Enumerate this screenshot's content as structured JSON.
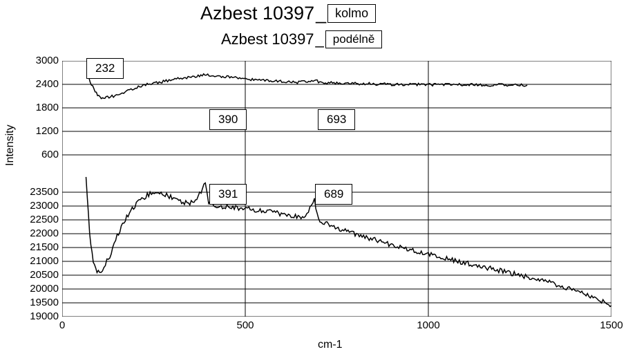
{
  "title1": {
    "text": "Azbest 10397",
    "box": "kolmo"
  },
  "title2": {
    "text": "Azbest 10397",
    "box": "podélně"
  },
  "ylabel": "Intensity",
  "xlabel": "cm-1",
  "chart": {
    "type": "line",
    "background_color": "#ffffff",
    "line_color": "#000000",
    "grid_color": "#000000",
    "border_color": "#000000",
    "line_width": 1.5,
    "title_fontsize": 27,
    "subtitle_fontsize": 22,
    "label_fontsize": 16,
    "tick_fontsize": 15,
    "xlim": [
      0,
      1500
    ],
    "xtick_step": 500,
    "xticks": [
      0,
      500,
      1000,
      1500
    ],
    "top_panel": {
      "ylim": [
        0,
        3000
      ],
      "ytick_step": 600,
      "yticks": [
        600,
        1200,
        1800,
        2400,
        3000
      ],
      "series": [
        {
          "x": 70,
          "y": 2600
        },
        {
          "x": 80,
          "y": 2400
        },
        {
          "x": 90,
          "y": 2200
        },
        {
          "x": 100,
          "y": 2100
        },
        {
          "x": 110,
          "y": 2050
        },
        {
          "x": 120,
          "y": 2060
        },
        {
          "x": 140,
          "y": 2100
        },
        {
          "x": 160,
          "y": 2150
        },
        {
          "x": 180,
          "y": 2250
        },
        {
          "x": 200,
          "y": 2300
        },
        {
          "x": 220,
          "y": 2380
        },
        {
          "x": 232,
          "y": 2400
        },
        {
          "x": 250,
          "y": 2420
        },
        {
          "x": 280,
          "y": 2480
        },
        {
          "x": 320,
          "y": 2550
        },
        {
          "x": 360,
          "y": 2600
        },
        {
          "x": 390,
          "y": 2640
        },
        {
          "x": 420,
          "y": 2620
        },
        {
          "x": 450,
          "y": 2590
        },
        {
          "x": 500,
          "y": 2540
        },
        {
          "x": 550,
          "y": 2500
        },
        {
          "x": 600,
          "y": 2470
        },
        {
          "x": 650,
          "y": 2450
        },
        {
          "x": 693,
          "y": 2520
        },
        {
          "x": 700,
          "y": 2450
        },
        {
          "x": 750,
          "y": 2430
        },
        {
          "x": 800,
          "y": 2420
        },
        {
          "x": 850,
          "y": 2410
        },
        {
          "x": 900,
          "y": 2400
        },
        {
          "x": 950,
          "y": 2400
        },
        {
          "x": 1000,
          "y": 2395
        },
        {
          "x": 1050,
          "y": 2390
        },
        {
          "x": 1100,
          "y": 2390
        },
        {
          "x": 1150,
          "y": 2385
        },
        {
          "x": 1200,
          "y": 2385
        },
        {
          "x": 1250,
          "y": 2380
        },
        {
          "x": 1270,
          "y": 2380
        }
      ]
    },
    "bottom_panel": {
      "ylim": [
        19000,
        24000
      ],
      "ytick_step": 500,
      "yticks": [
        19000,
        19500,
        20000,
        20500,
        21000,
        21500,
        22000,
        22500,
        23000,
        23500
      ],
      "series": [
        {
          "x": 65,
          "y": 24100
        },
        {
          "x": 75,
          "y": 22000
        },
        {
          "x": 85,
          "y": 21000
        },
        {
          "x": 95,
          "y": 20600
        },
        {
          "x": 110,
          "y": 20700
        },
        {
          "x": 130,
          "y": 21200
        },
        {
          "x": 150,
          "y": 21900
        },
        {
          "x": 180,
          "y": 22700
        },
        {
          "x": 210,
          "y": 23200
        },
        {
          "x": 240,
          "y": 23450
        },
        {
          "x": 270,
          "y": 23500
        },
        {
          "x": 300,
          "y": 23300
        },
        {
          "x": 330,
          "y": 23150
        },
        {
          "x": 360,
          "y": 23100
        },
        {
          "x": 391,
          "y": 23800
        },
        {
          "x": 400,
          "y": 23100
        },
        {
          "x": 430,
          "y": 23000
        },
        {
          "x": 470,
          "y": 22950
        },
        {
          "x": 510,
          "y": 22900
        },
        {
          "x": 560,
          "y": 22800
        },
        {
          "x": 610,
          "y": 22700
        },
        {
          "x": 660,
          "y": 22600
        },
        {
          "x": 689,
          "y": 23200
        },
        {
          "x": 700,
          "y": 22500
        },
        {
          "x": 750,
          "y": 22200
        },
        {
          "x": 800,
          "y": 22000
        },
        {
          "x": 850,
          "y": 21800
        },
        {
          "x": 900,
          "y": 21600
        },
        {
          "x": 950,
          "y": 21400
        },
        {
          "x": 1000,
          "y": 21250
        },
        {
          "x": 1050,
          "y": 21100
        },
        {
          "x": 1100,
          "y": 20950
        },
        {
          "x": 1150,
          "y": 20800
        },
        {
          "x": 1200,
          "y": 20650
        },
        {
          "x": 1250,
          "y": 20500
        },
        {
          "x": 1300,
          "y": 20350
        },
        {
          "x": 1350,
          "y": 20150
        },
        {
          "x": 1400,
          "y": 19950
        },
        {
          "x": 1450,
          "y": 19700
        },
        {
          "x": 1500,
          "y": 19400
        }
      ]
    }
  },
  "peaks": {
    "p232": "232",
    "p390": "390",
    "p693": "693",
    "p391": "391",
    "p689": "689"
  }
}
